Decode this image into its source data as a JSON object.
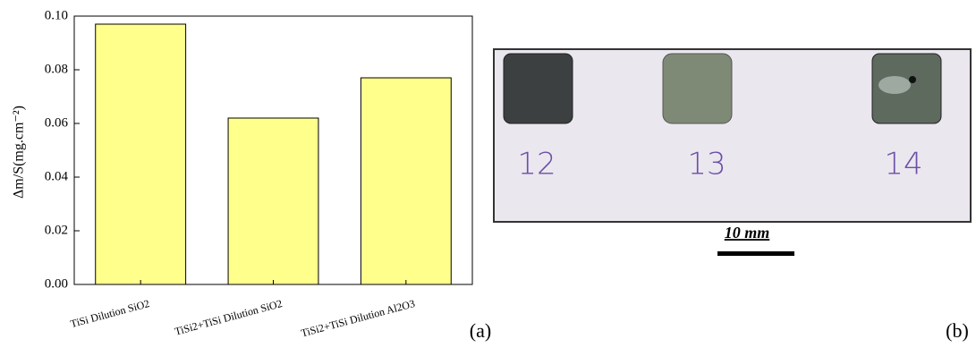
{
  "chart_data": {
    "type": "bar",
    "y_label": "Δm/S(mg.cm⁻²)",
    "categories": [
      "TiSi Dilution SiO2",
      "TiSi2+TiSi Dilution SiO2",
      "TiSi2+TiSi Dilution Al2O3"
    ],
    "values": [
      0.097,
      0.062,
      0.077
    ],
    "color": "#ffff8c",
    "ylim": [
      0,
      0.1
    ],
    "yticks": [
      {
        "value": 0,
        "label": "0.00"
      },
      0.02,
      0.04,
      0.06,
      0.08,
      {
        "value": 0.1,
        "label": "0.10"
      }
    ],
    "panel_label": "(a)"
  },
  "photo": {
    "labels": [
      "12",
      "13",
      "14"
    ],
    "scale_bar": "10 mm",
    "panel_label": "(b)"
  }
}
